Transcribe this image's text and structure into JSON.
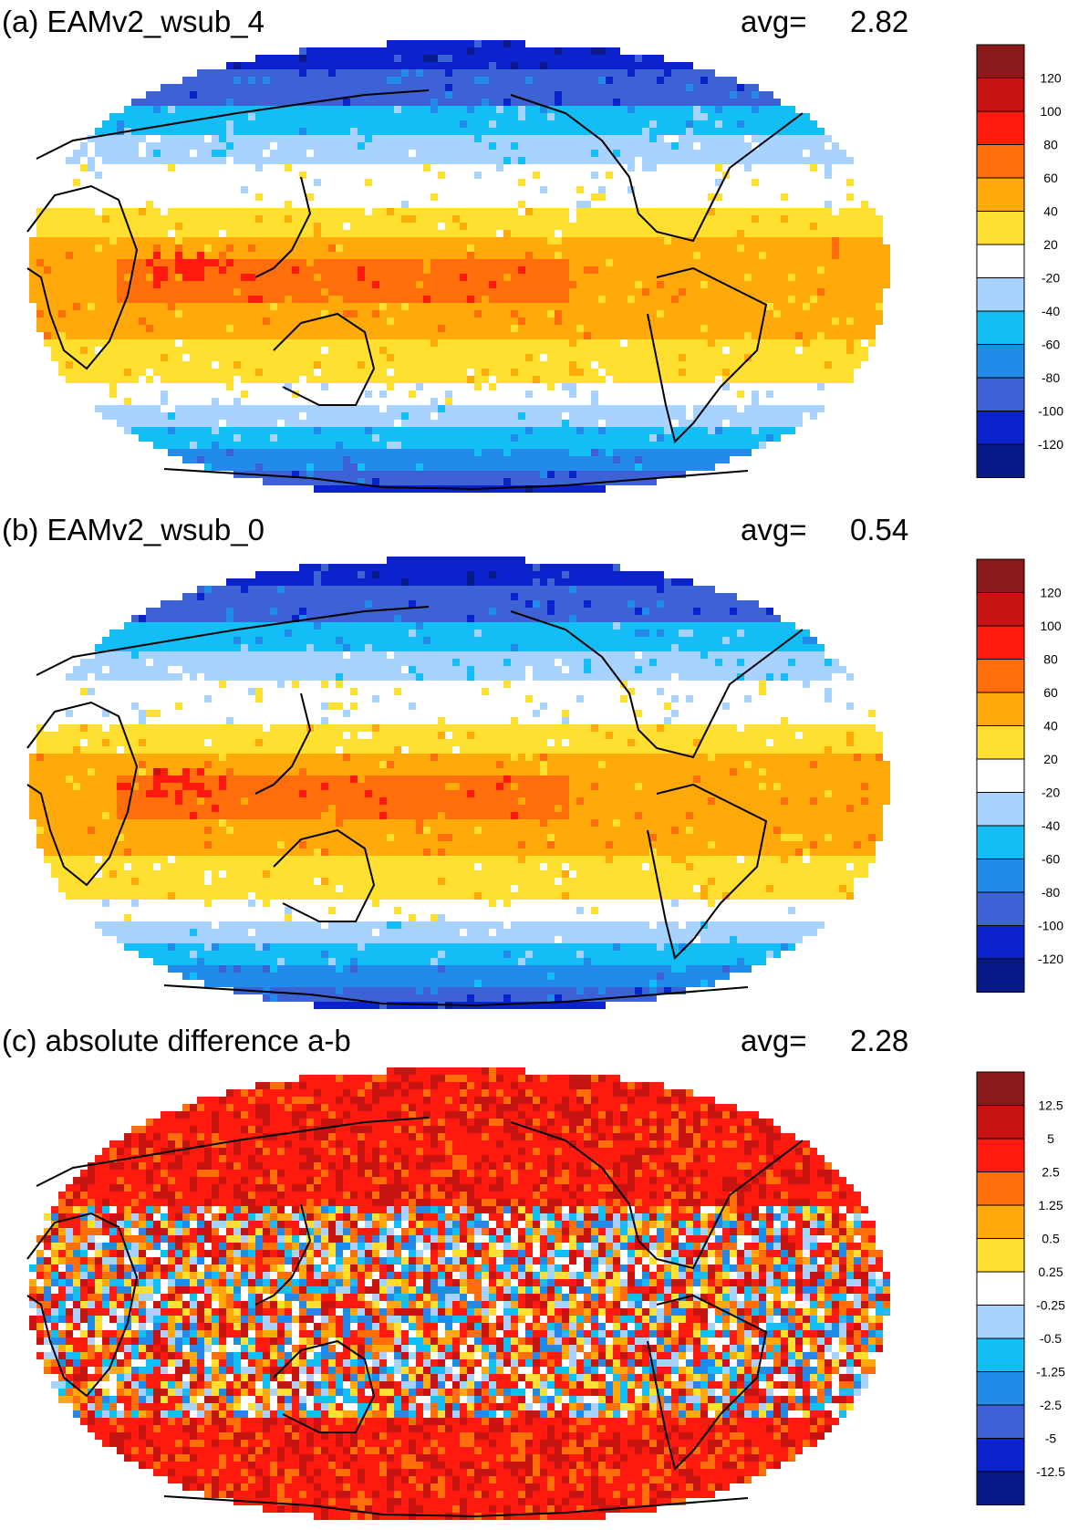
{
  "colors": {
    "palette": [
      "#8a1a1a",
      "#c81410",
      "#ff1a10",
      "#ff6e0a",
      "#ffaa0a",
      "#ffe030",
      "#ffffff",
      "#a8d2ff",
      "#12bef5",
      "#228ae8",
      "#3c62d6",
      "#0c22cc",
      "#081a8a"
    ],
    "coastline": "#000000"
  },
  "panels": [
    {
      "title": "(a) EAMv2_wsub_4",
      "avg_label": "avg=",
      "avg_value": "2.82",
      "kind": "field",
      "colorbar_labels": [
        "120",
        "100",
        "80",
        "60",
        "40",
        "20",
        "-20",
        "-40",
        "-60",
        "-80",
        "-100",
        "-120"
      ]
    },
    {
      "title": "(b) EAMv2_wsub_0",
      "avg_label": "avg=",
      "avg_value": "0.54",
      "kind": "field",
      "colorbar_labels": [
        "120",
        "100",
        "80",
        "60",
        "40",
        "20",
        "-20",
        "-40",
        "-60",
        "-80",
        "-100",
        "-120"
      ]
    },
    {
      "title": "(c) absolute difference a-b",
      "avg_label": "avg=",
      "avg_value": "2.28",
      "kind": "diff",
      "colorbar_labels": [
        "12.5",
        "5",
        "2.5",
        "1.25",
        "0.5",
        "0.25",
        "-0.25",
        "-0.5",
        "-1.25",
        "-2.5",
        "-5",
        "-12.5"
      ]
    }
  ]
}
